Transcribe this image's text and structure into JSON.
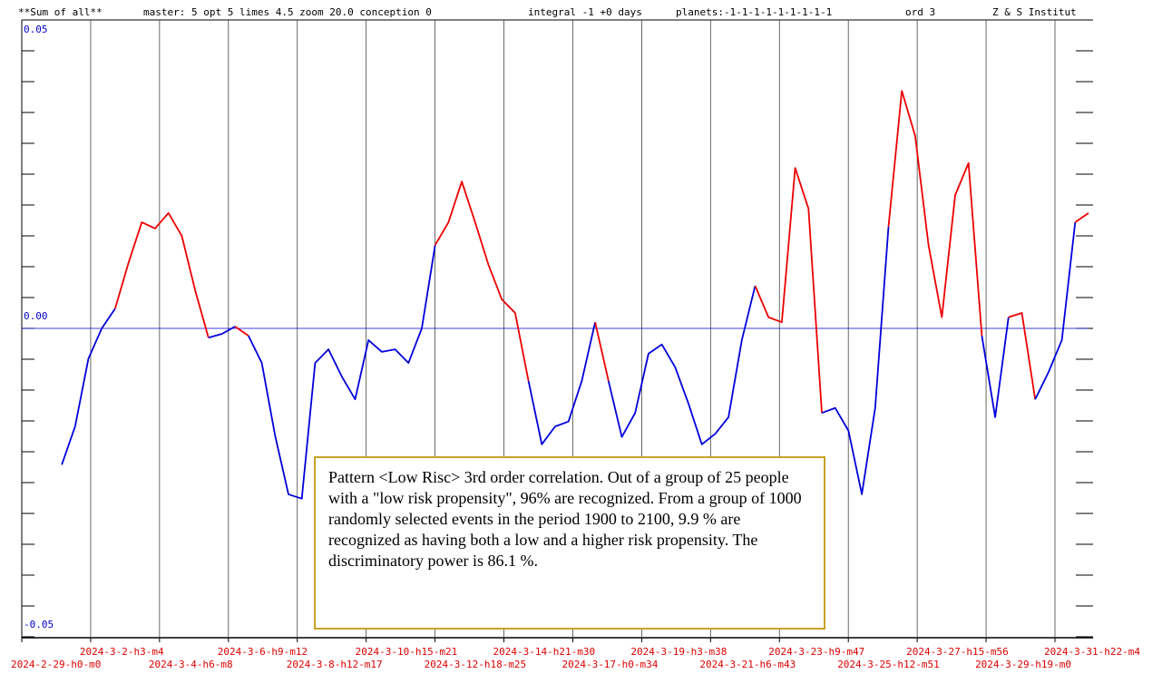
{
  "chart_data": {
    "type": "line",
    "header": [
      "**Sum of all**",
      "master: 5  opt 5 limes 4.5 zoom 20.0  conception 0",
      "integral -1 +0 days",
      "planets:-1-1-1-1-1-1-1-1-1",
      "ord 3",
      "Z & S Institut"
    ],
    "annotation": "Pattern <Low Risc> 3rd order correlation. Out of a group of 25 people with a \"low risk propensity\", 96% are recognized. From a group of 1000 randomly selected events in the period 1900 to 2100, 9.9 % are recognized as having both a low and a higher risk propensity. The discriminatory power is 86.1 %.",
    "xticks": [
      "2024-2-29-h0-m0",
      "2024-3-2-h3-m4",
      "2024-3-4-h6-m8",
      "2024-3-6-h9-m12",
      "2024-3-8-h12-m17",
      "2024-3-10-h15-m21",
      "2024-3-12-h18-m25",
      "2024-3-14-h21-m30",
      "2024-3-17-h0-m34",
      "2024-3-19-h3-m38",
      "2024-3-21-h6-m43",
      "2024-3-23-h9-m47",
      "2024-3-25-h12-m51",
      "2024-3-27-h15-m56",
      "2024-3-29-h19-m0",
      "2024-3-31-h22-m4"
    ],
    "ylim": [
      -0.05,
      0.05
    ],
    "yticks": [
      -0.05,
      {
        "value": 0,
        "label": "0.00"
      },
      0.05
    ],
    "yminorticks": [
      -0.05,
      -0.045,
      -0.04,
      -0.035,
      -0.03,
      -0.025,
      -0.02,
      -0.015,
      -0.01,
      -0.005,
      0,
      0.005,
      0.01,
      0.015,
      0.02,
      0.025,
      0.03,
      0.035,
      0.04,
      0.045,
      0.05
    ],
    "positive_color": "#ee0000",
    "negative_color": "#0000dd",
    "zero_line_color": "#0000dd",
    "values": [
      null,
      null,
      null,
      -0.0221,
      -0.0159,
      -0.0049,
      0,
      0.0032,
      0.0106,
      0.0172,
      0.0162,
      0.0187,
      0.015,
      0.0062,
      -0.0015,
      -0.0009,
      0.0003,
      -0.0012,
      -0.0056,
      -0.0174,
      -0.0269,
      -0.0276,
      -0.0056,
      -0.0034,
      -0.0078,
      -0.0115,
      -0.0019,
      -0.0038,
      -0.0034,
      -0.0056,
      0,
      0.0135,
      0.0172,
      0.0238,
      0.0172,
      0.0103,
      0.0047,
      0.0025,
      -0.0085,
      -0.0188,
      -0.0159,
      -0.0151,
      -0.0085,
      0.001,
      -0.0085,
      -0.0176,
      -0.0137,
      -0.0041,
      -0.0026,
      -0.0063,
      -0.0122,
      -0.0188,
      -0.0171,
      -0.0144,
      -0.0019,
      0.0069,
      0.0018,
      0.001,
      0.026,
      0.0194,
      -0.0137,
      -0.0129,
      -0.0166,
      -0.0269,
      -0.0129,
      0.0165,
      0.0385,
      0.0312,
      0.0135,
      0.0018,
      0.0216,
      0.0268,
      -0.0012,
      -0.0144,
      0.0018,
      0.0025,
      -0.0115,
      -0.0071,
      -0.0019,
      0.0172,
      0.0187
    ]
  }
}
